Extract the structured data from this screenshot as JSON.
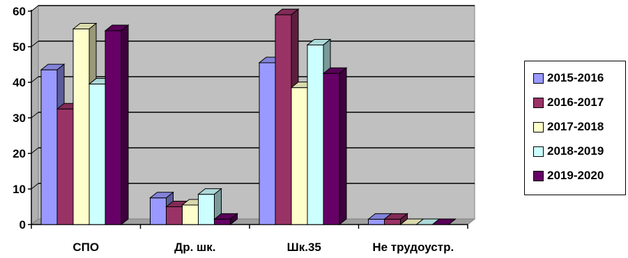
{
  "chart_data": {
    "type": "bar",
    "title": "",
    "xlabel": "",
    "ylabel": "",
    "categories": [
      "СПО",
      "Др. шк.",
      "Шк.35",
      "Не трудоустр."
    ],
    "ylim": [
      0,
      60
    ],
    "yticks": [
      "0",
      "10",
      "20",
      "30",
      "40",
      "50",
      "60"
    ],
    "grid": true,
    "legend_position": "right",
    "series": [
      {
        "name": "2015-2016",
        "color": "#9999ff",
        "values": [
          43.5,
          7.5,
          45.5,
          1.5
        ]
      },
      {
        "name": "2016-2017",
        "color": "#993366",
        "values": [
          32.5,
          5,
          59,
          1.5
        ]
      },
      {
        "name": "2017-2018",
        "color": "#ffffcc",
        "values": [
          55,
          5.5,
          38.5,
          0
        ]
      },
      {
        "name": "2018-2019",
        "color": "#ccffff",
        "values": [
          39.5,
          8.5,
          50.5,
          0
        ]
      },
      {
        "name": "2019-2020",
        "color": "#660066",
        "values": [
          54.5,
          1.5,
          42.5,
          0
        ]
      }
    ]
  }
}
